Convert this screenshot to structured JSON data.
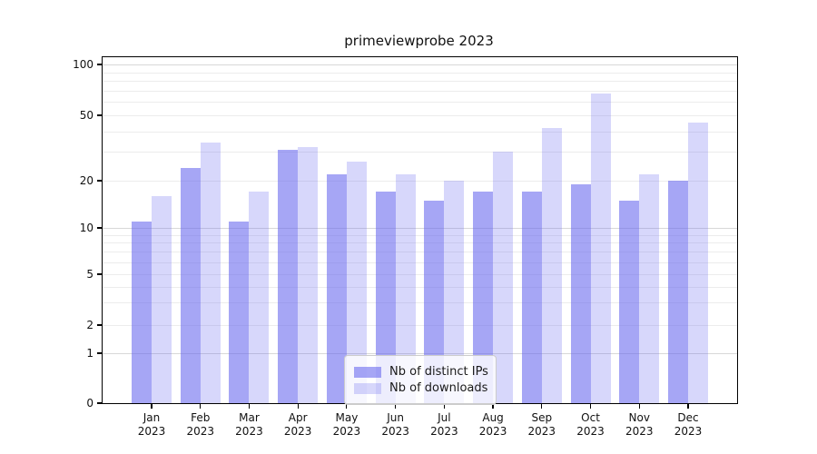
{
  "chart_data": {
    "type": "bar",
    "title": "primeviewprobe 2023",
    "categories": [
      "Jan 2023",
      "Feb 2023",
      "Mar 2023",
      "Apr 2023",
      "May 2023",
      "Jun 2023",
      "Jul 2023",
      "Aug 2023",
      "Sep 2023",
      "Oct 2023",
      "Nov 2023",
      "Dec 2023"
    ],
    "series": [
      {
        "name": "Nb of distinct IPs",
        "color": "rgba(102,102,238,0.58)",
        "values": [
          11,
          24,
          11,
          31,
          22,
          17,
          15,
          17,
          17,
          19,
          15,
          20
        ]
      },
      {
        "name": "Nb of downloads",
        "color": "rgba(102,102,238,0.26)",
        "values": [
          16,
          34,
          17,
          32,
          26,
          22,
          20,
          30,
          42,
          67,
          22,
          45
        ]
      }
    ],
    "xlabel": "",
    "ylabel": "",
    "yticks": [
      0,
      1,
      2,
      5,
      10,
      20,
      50,
      100
    ],
    "ylim": [
      0,
      110
    ],
    "yscale": "symlog",
    "grid": true,
    "legend_position": "lower center"
  }
}
